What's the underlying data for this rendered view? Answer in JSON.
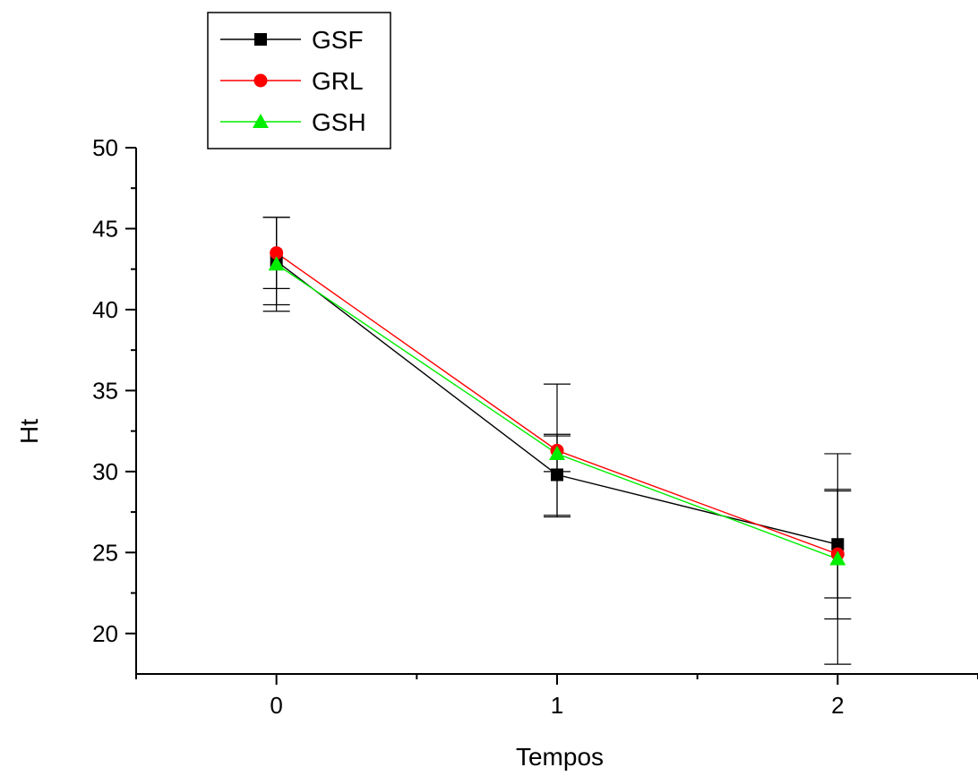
{
  "chart_data": {
    "type": "line",
    "xlabel": "Tempos",
    "ylabel": "Ht",
    "x": [
      0,
      1,
      2
    ],
    "xlim": [
      -0.5,
      2.5
    ],
    "ylim": [
      17.5,
      50
    ],
    "x_ticks": [
      0,
      1,
      2
    ],
    "y_ticks": [
      20,
      25,
      30,
      35,
      40,
      45,
      50
    ],
    "legend_position": "top-left, above plot",
    "grid": false,
    "series": [
      {
        "name": "GSF",
        "color": "#000000",
        "marker": "square",
        "values": [
          43.0,
          29.8,
          25.5
        ],
        "error": [
          2.7,
          2.5,
          3.3
        ]
      },
      {
        "name": "GRL",
        "color": "#ff0000",
        "marker": "circle",
        "values": [
          43.5,
          31.3,
          24.9
        ],
        "error": [
          2.2,
          4.1,
          4.0
        ]
      },
      {
        "name": "GSH",
        "color": "#00ee00",
        "marker": "triangle",
        "values": [
          42.8,
          31.1,
          24.6
        ],
        "error": [
          2.9,
          1.1,
          6.5
        ]
      }
    ]
  }
}
